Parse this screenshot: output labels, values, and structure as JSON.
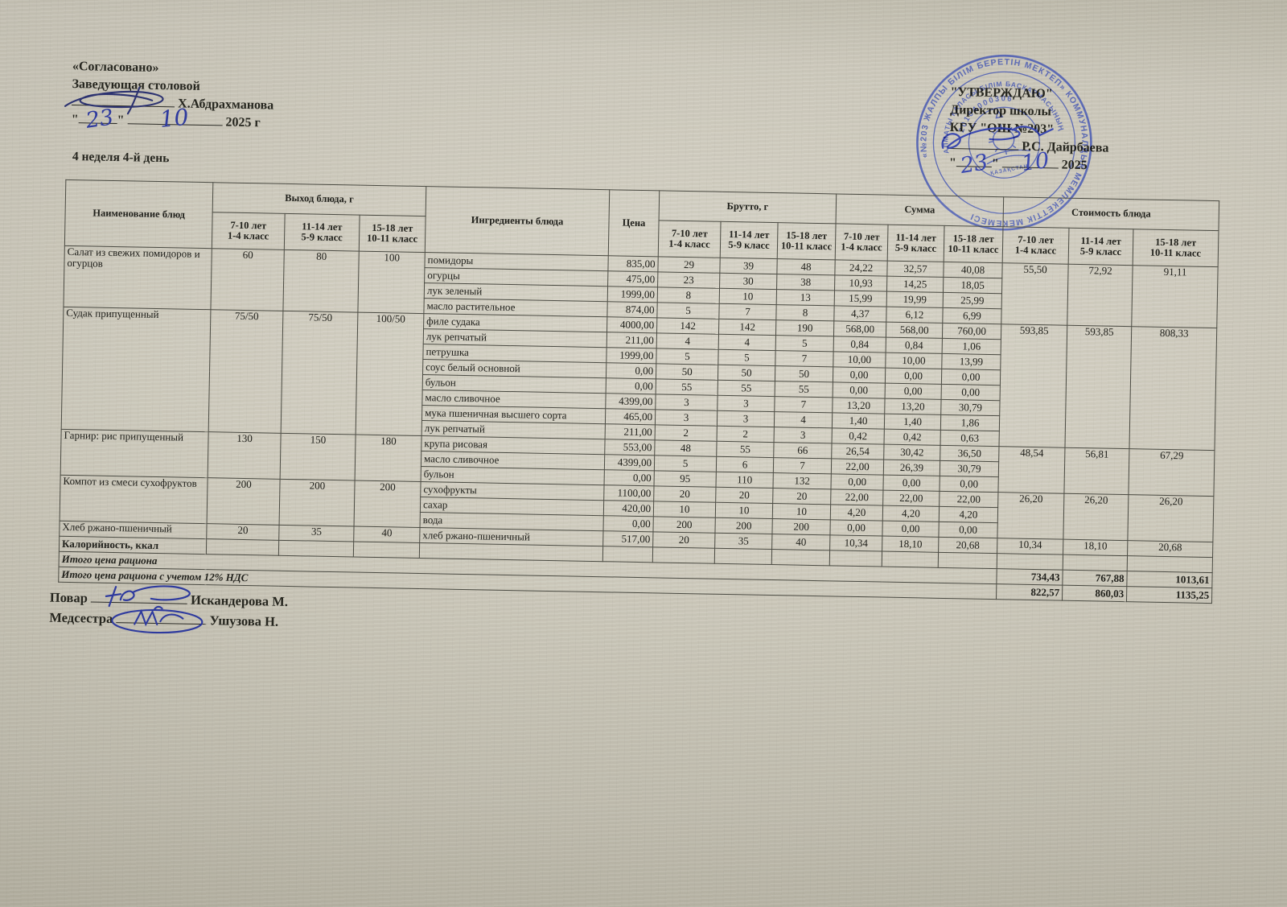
{
  "approval_left": {
    "title": "«Согласовано»",
    "role": "Заведующая столовой",
    "name": "Х.Абдрахманова",
    "day": "23",
    "month": "10",
    "year": "2025 г",
    "quote": "\""
  },
  "approval_right": {
    "title": "\"УТВЕРЖДАЮ\"",
    "role": "Директор школы",
    "org": "КГУ \"ОШ №203\"",
    "name": "Р.С. Дайрбаева",
    "day": "23",
    "month": "10",
    "year": "2025",
    "quote": "\""
  },
  "stamp": {
    "ring_text": "«№203 ЖАЛПЫ БІЛІМ БЕРЕТІН МЕКТЕП» КОММУНАЛДЫҚ МЕМЛЕКЕТТІК МЕКЕМЕСІ",
    "arc_text": "АЛМАТЫ ҚАЛАСЫ БІЛІМ БАСҚАРМАСЫНЫҢ",
    "reg_number": "20104000306",
    "center_text": "ҚАЗАҚСТАН",
    "color": "#4355b4"
  },
  "menu_title": "4 неделя 4-й день",
  "table": {
    "headers": {
      "name": "Наименование блюд",
      "yield_group": "Выход блюда, г",
      "ingredients": "Ингредиенты блюда",
      "price": "Цена",
      "brutto_group": "Брутто, г",
      "summa_group": "Сумма",
      "cost_group": "Стоимость блюда",
      "age_groups": [
        {
          "line1": "7-10 лет",
          "line2": "1-4 класс"
        },
        {
          "line1": "11-14 лет",
          "line2": "5-9 класс"
        },
        {
          "line1": "15-18 лет",
          "line2": "10-11 класс"
        }
      ]
    },
    "dishes": [
      {
        "name": "Салат из свежих помидоров и огурцов",
        "yields": [
          "60",
          "80",
          "100"
        ],
        "cost": [
          "55,50",
          "72,92",
          "91,11"
        ],
        "ingredients": [
          {
            "name": "помидоры",
            "price": "835,00",
            "brutto": [
              "29",
              "39",
              "48"
            ],
            "summa": [
              "24,22",
              "32,57",
              "40,08"
            ]
          },
          {
            "name": "огурцы",
            "price": "475,00",
            "brutto": [
              "23",
              "30",
              "38"
            ],
            "summa": [
              "10,93",
              "14,25",
              "18,05"
            ]
          },
          {
            "name": "лук зеленый",
            "price": "1999,00",
            "brutto": [
              "8",
              "10",
              "13"
            ],
            "summa": [
              "15,99",
              "19,99",
              "25,99"
            ]
          },
          {
            "name": "масло растительное",
            "price": "874,00",
            "brutto": [
              "5",
              "7",
              "8"
            ],
            "summa": [
              "4,37",
              "6,12",
              "6,99"
            ]
          }
        ]
      },
      {
        "name": "Судак припущенный",
        "yields": [
          "75/50",
          "75/50",
          "100/50"
        ],
        "cost": [
          "593,85",
          "593,85",
          "808,33"
        ],
        "ingredients": [
          {
            "name": "филе судака",
            "price": "4000,00",
            "brutto": [
              "142",
              "142",
              "190"
            ],
            "summa": [
              "568,00",
              "568,00",
              "760,00"
            ]
          },
          {
            "name": "лук репчатый",
            "price": "211,00",
            "brutto": [
              "4",
              "4",
              "5"
            ],
            "summa": [
              "0,84",
              "0,84",
              "1,06"
            ]
          },
          {
            "name": "петрушка",
            "price": "1999,00",
            "brutto": [
              "5",
              "5",
              "7"
            ],
            "summa": [
              "10,00",
              "10,00",
              "13,99"
            ]
          },
          {
            "name": "соус белый основной",
            "price": "0,00",
            "brutto": [
              "50",
              "50",
              "50"
            ],
            "summa": [
              "0,00",
              "0,00",
              "0,00"
            ]
          },
          {
            "name": "бульон",
            "price": "0,00",
            "brutto": [
              "55",
              "55",
              "55"
            ],
            "summa": [
              "0,00",
              "0,00",
              "0,00"
            ]
          },
          {
            "name": "масло сливочное",
            "price": "4399,00",
            "brutto": [
              "3",
              "3",
              "7"
            ],
            "summa": [
              "13,20",
              "13,20",
              "30,79"
            ]
          },
          {
            "name": "мука пшеничная высшего сорта",
            "price": "465,00",
            "brutto": [
              "3",
              "3",
              "4"
            ],
            "summa": [
              "1,40",
              "1,40",
              "1,86"
            ]
          },
          {
            "name": "лук репчатый",
            "price": "211,00",
            "brutto": [
              "2",
              "2",
              "3"
            ],
            "summa": [
              "0,42",
              "0,42",
              "0,63"
            ]
          }
        ]
      },
      {
        "name": "Гарнир: рис припущенный",
        "yields": [
          "130",
          "150",
          "180"
        ],
        "cost": [
          "48,54",
          "56,81",
          "67,29"
        ],
        "ingredients": [
          {
            "name": "крупа рисовая",
            "price": "553,00",
            "brutto": [
              "48",
              "55",
              "66"
            ],
            "summa": [
              "26,54",
              "30,42",
              "36,50"
            ]
          },
          {
            "name": "масло сливочное",
            "price": "4399,00",
            "brutto": [
              "5",
              "6",
              "7"
            ],
            "summa": [
              "22,00",
              "26,39",
              "30,79"
            ]
          },
          {
            "name": "бульон",
            "price": "0,00",
            "brutto": [
              "95",
              "110",
              "132"
            ],
            "summa": [
              "0,00",
              "0,00",
              "0,00"
            ]
          }
        ]
      },
      {
        "name": "Компот из смеси сухофруктов",
        "yields": [
          "200",
          "200",
          "200"
        ],
        "cost": [
          "26,20",
          "26,20",
          "26,20"
        ],
        "ingredients": [
          {
            "name": "сухофрукты",
            "price": "1100,00",
            "brutto": [
              "20",
              "20",
              "20"
            ],
            "summa": [
              "22,00",
              "22,00",
              "22,00"
            ]
          },
          {
            "name": "сахар",
            "price": "420,00",
            "brutto": [
              "10",
              "10",
              "10"
            ],
            "summa": [
              "4,20",
              "4,20",
              "4,20"
            ]
          },
          {
            "name": "вода",
            "price": "0,00",
            "brutto": [
              "200",
              "200",
              "200"
            ],
            "summa": [
              "0,00",
              "0,00",
              "0,00"
            ]
          }
        ]
      },
      {
        "name": "Хлеб ржано-пшеничный",
        "yields": [
          "20",
          "35",
          "40"
        ],
        "cost": [
          "10,34",
          "18,10",
          "20,68"
        ],
        "ingredients": [
          {
            "name": "хлеб ржано-пшеничный",
            "price": "517,00",
            "brutto": [
              "20",
              "35",
              "40"
            ],
            "summa": [
              "10,34",
              "18,10",
              "20,68"
            ]
          }
        ]
      }
    ],
    "calories_label": "Калорийность, ккал",
    "total_label": "Итого цена рациона",
    "total_values": [
      "734,43",
      "767,88",
      "1013,61"
    ],
    "total_vat_label": "Итого цена рациона с учетом 12% НДС",
    "total_vat_values": [
      "822,57",
      "860,03",
      "1135,25"
    ]
  },
  "signatures": {
    "cook_label": "Повар",
    "cook_name": "Искандерова М.",
    "nurse_label": "Медсестра",
    "nurse_name": "Ушузова Н."
  }
}
